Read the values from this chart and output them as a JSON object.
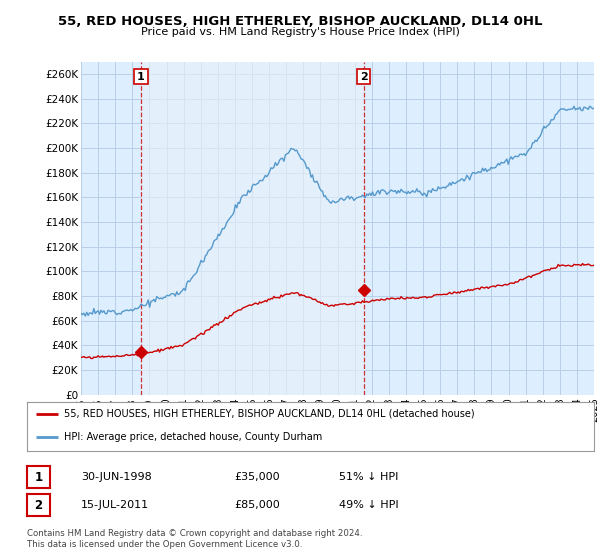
{
  "title": "55, RED HOUSES, HIGH ETHERLEY, BISHOP AUCKLAND, DL14 0HL",
  "subtitle": "Price paid vs. HM Land Registry's House Price Index (HPI)",
  "yticks": [
    0,
    20000,
    40000,
    60000,
    80000,
    100000,
    120000,
    140000,
    160000,
    180000,
    200000,
    220000,
    240000,
    260000
  ],
  "ytick_labels": [
    "£0",
    "£20K",
    "£40K",
    "£60K",
    "£80K",
    "£100K",
    "£120K",
    "£140K",
    "£160K",
    "£180K",
    "£200K",
    "£220K",
    "£240K",
    "£260K"
  ],
  "ylim": [
    0,
    270000
  ],
  "background_color": "#ffffff",
  "plot_bg_color": "#ddeeff",
  "grid_color": "#b8cfe8",
  "hpi_line_color": "#5599cc",
  "price_line_color": "#cc0000",
  "annotation_color": "#cc0000",
  "sale1_date_num": 1998.5,
  "sale1_price": 35000,
  "sale1_label": "1",
  "sale2_date_num": 2011.54,
  "sale2_price": 85000,
  "sale2_label": "2",
  "legend_entry1": "55, RED HOUSES, HIGH ETHERLEY, BISHOP AUCKLAND, DL14 0HL (detached house)",
  "legend_entry2": "HPI: Average price, detached house, County Durham",
  "table_row1": [
    "1",
    "30-JUN-1998",
    "£35,000",
    "51% ↓ HPI"
  ],
  "table_row2": [
    "2",
    "15-JUL-2011",
    "£85,000",
    "49% ↓ HPI"
  ],
  "footnote": "Contains HM Land Registry data © Crown copyright and database right 2024.\nThis data is licensed under the Open Government Licence v3.0.",
  "xstart": 1995,
  "xend": 2025
}
